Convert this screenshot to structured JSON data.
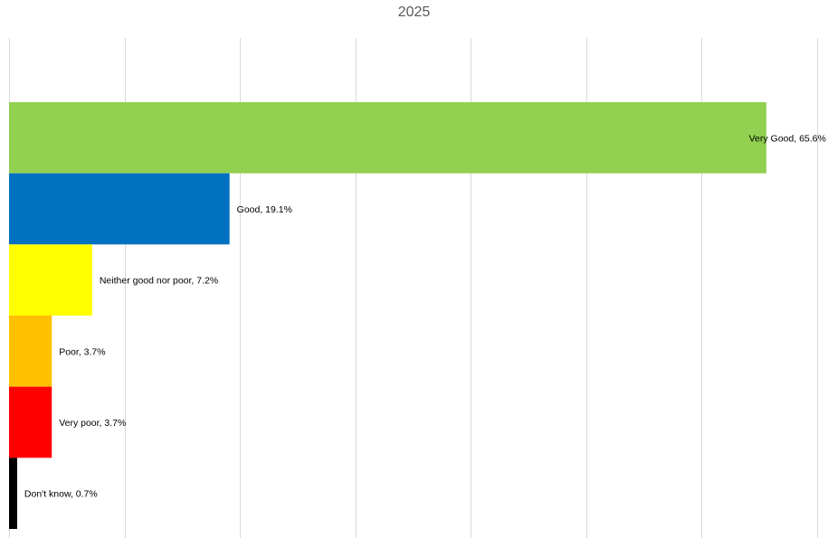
{
  "chart_data": {
    "type": "bar",
    "orientation": "horizontal",
    "title": "2025",
    "xlabel": "",
    "ylabel": "",
    "xlim": [
      0,
      70
    ],
    "grid": true,
    "legend": "none",
    "categories": [
      "Very Good",
      "Good",
      "Neither good nor poor",
      "Poor",
      "Very poor",
      "Don't know"
    ],
    "values": [
      65.6,
      19.1,
      7.2,
      3.7,
      3.7,
      0.7
    ],
    "labels": [
      "Very Good, 65.6%",
      "Good, 19.1%",
      "Neither good nor poor, 7.2%",
      "Poor, 3.7%",
      "Very poor, 3.7%",
      "Don't know, 0.7%"
    ],
    "colors": [
      "#92D050",
      "#0070C0",
      "#FFFF00",
      "#FFC000",
      "#FF0000",
      "#000000"
    ],
    "gridline_color": "#D9D9D9"
  }
}
